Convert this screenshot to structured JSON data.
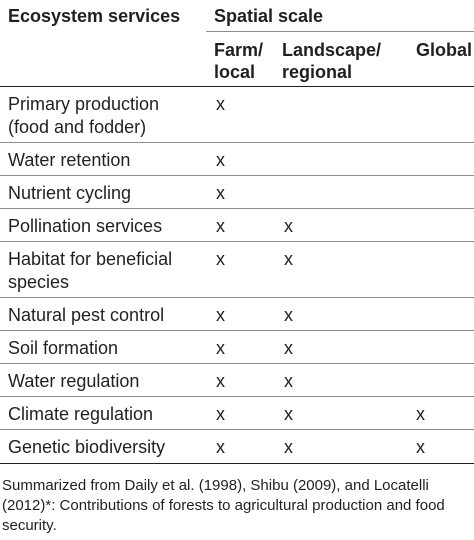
{
  "table": {
    "header": {
      "ecosystem_services": "Ecosystem services",
      "spatial_scale": "Spatial scale",
      "col_farm": [
        "Farm/",
        "local"
      ],
      "col_landscape": [
        "Landscape/",
        "regional"
      ],
      "col_global": "Global"
    },
    "rows": [
      {
        "service": [
          "Primary production",
          "(food and fodder)"
        ],
        "farm": "x",
        "landscape": "",
        "global": ""
      },
      {
        "service": [
          "Water retention"
        ],
        "farm": "x",
        "landscape": "",
        "global": ""
      },
      {
        "service": [
          "Nutrient cycling"
        ],
        "farm": "x",
        "landscape": "",
        "global": ""
      },
      {
        "service": [
          "Pollination services"
        ],
        "farm": "x",
        "landscape": "x",
        "global": ""
      },
      {
        "service": [
          "Habitat for beneficial",
          "species"
        ],
        "farm": "x",
        "landscape": "x",
        "global": ""
      },
      {
        "service": [
          "Natural pest control"
        ],
        "farm": "x",
        "landscape": "x",
        "global": ""
      },
      {
        "service": [
          "Soil formation"
        ],
        "farm": "x",
        "landscape": "x",
        "global": ""
      },
      {
        "service": [
          "Water regulation"
        ],
        "farm": "x",
        "landscape": "x",
        "global": ""
      },
      {
        "service": [
          "Climate regulation"
        ],
        "farm": "x",
        "landscape": "x",
        "global": "x"
      },
      {
        "service": [
          "Genetic biodiversity"
        ],
        "farm": "x",
        "landscape": "x",
        "global": "x"
      }
    ]
  },
  "caption": "Summarized from Daily et al. (1998), Shibu (2009), and Locatelli (2012)*: Contributions of forests to agricultural production and food security."
}
